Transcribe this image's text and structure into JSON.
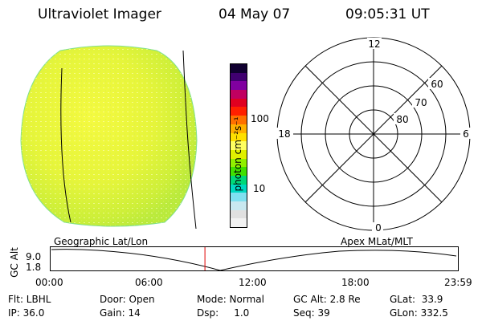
{
  "header": {
    "instrument": "Ultraviolet Imager",
    "date": "04 May 07",
    "time": "09:05:31 UT"
  },
  "colorbar": {
    "title": "photon cm⁻²s⁻¹",
    "ticks": [
      "100",
      "10"
    ],
    "colors": [
      "#f2f2f2",
      "#e0e0e0",
      "#c8e8f0",
      "#80e0f0",
      "#00d8c0",
      "#00d878",
      "#40e000",
      "#90f000",
      "#e0f000",
      "#ffff60",
      "#ffe000",
      "#ffb000",
      "#ff7000",
      "#ff2000",
      "#e00020",
      "#c00060",
      "#8000a0",
      "#400070",
      "#100030"
    ]
  },
  "polar": {
    "mlt_labels": {
      "top": "12",
      "left": "18",
      "right": "6",
      "bottom": "0"
    },
    "lat_labels": [
      "60",
      "70",
      "80"
    ]
  },
  "timeline": {
    "left_label": "Geographic Lat/Lon",
    "right_label": "Apex MLat/MLT",
    "axis_title": "GC Alt",
    "y_ticks": [
      "9.0",
      "1.8"
    ],
    "x_ticks": [
      "00:00",
      "06:00",
      "12:00",
      "18:00",
      "23:59"
    ],
    "current_time_fraction": 0.3788
  },
  "status": {
    "flt": "Flt: LBHL",
    "ip": "IP: 36.0",
    "door": "Door: Open",
    "gain": "Gain: 14",
    "mode": "Mode: Normal",
    "dsp": "Dsp:     1.0",
    "gcalt": "GC Alt: 2.8 Re",
    "seq": "Seq: 39",
    "glat": "GLat:  33.9",
    "glon": "GLon: 332.5"
  }
}
